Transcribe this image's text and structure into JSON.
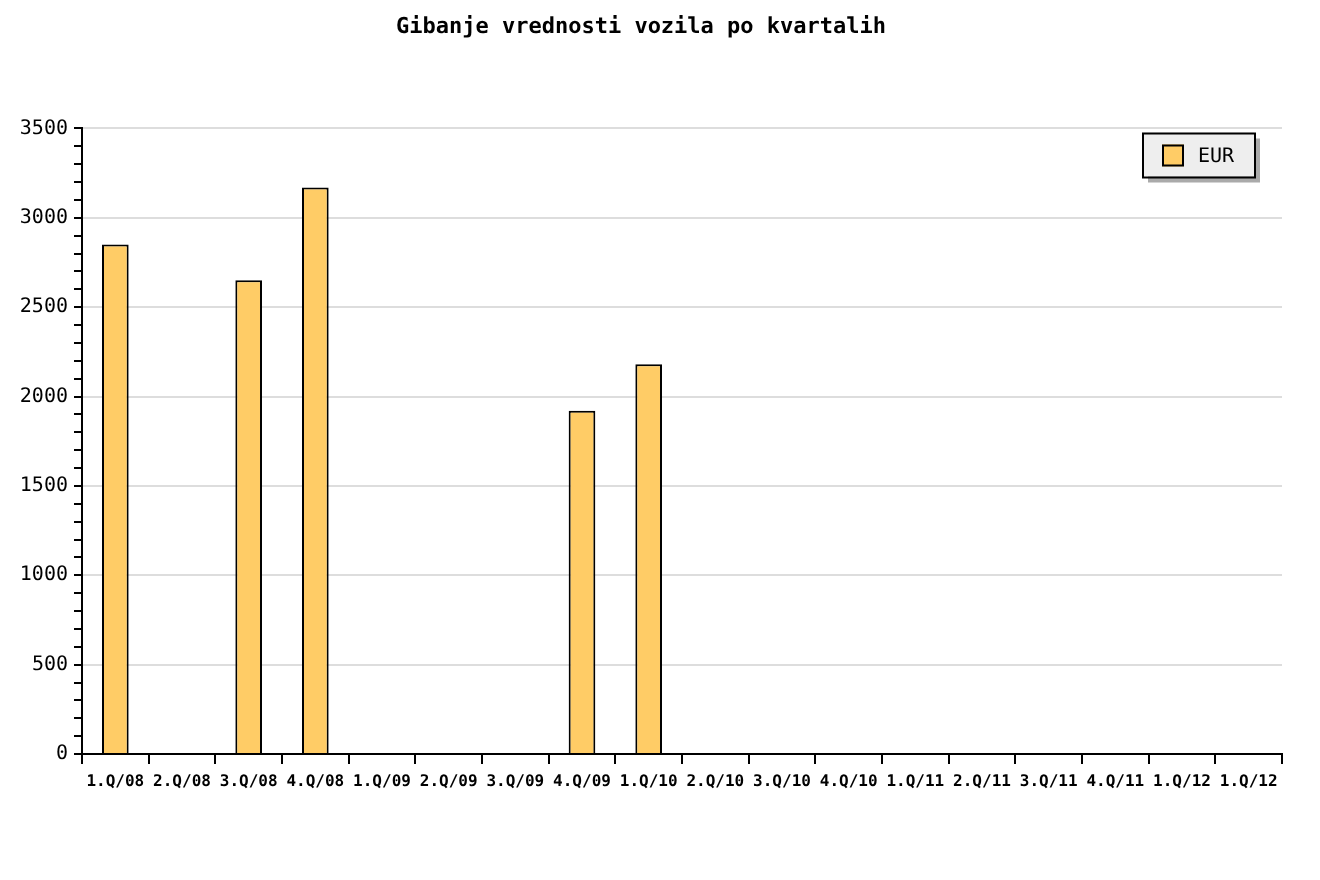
{
  "chart_data": {
    "type": "bar",
    "title": "Gibanje vrednosti vozila po kvartalih",
    "categories": [
      "1.Q/08",
      "2.Q/08",
      "3.Q/08",
      "4.Q/08",
      "1.Q/09",
      "2.Q/09",
      "3.Q/09",
      "4.Q/09",
      "1.Q/10",
      "2.Q/10",
      "3.Q/10",
      "4.Q/10",
      "1.Q/11",
      "2.Q/11",
      "3.Q/11",
      "4.Q/11",
      "1.Q/12",
      "1.Q/12"
    ],
    "series": [
      {
        "name": "EUR",
        "color": "#ffcc66",
        "values": [
          2850,
          null,
          2650,
          3170,
          null,
          null,
          null,
          1920,
          2180,
          null,
          null,
          null,
          null,
          null,
          null,
          null,
          null,
          null
        ]
      }
    ],
    "ylim": [
      0,
      3500
    ],
    "yticks": [
      0,
      {
        "value": 100,
        "label": null
      },
      {
        "value": 200,
        "label": null
      },
      {
        "value": 300,
        "label": null
      },
      {
        "value": 400,
        "label": null
      },
      500,
      {
        "value": 600,
        "label": null
      },
      {
        "value": 700,
        "label": null
      },
      {
        "value": 800,
        "label": null
      },
      {
        "value": 900,
        "label": null
      },
      1000,
      {
        "value": 1100,
        "label": null
      },
      {
        "value": 1200,
        "label": null
      },
      {
        "value": 1300,
        "label": null
      },
      {
        "value": 1400,
        "label": null
      },
      1500,
      {
        "value": 1600,
        "label": null
      },
      {
        "value": 1700,
        "label": null
      },
      {
        "value": 1800,
        "label": null
      },
      {
        "value": 1900,
        "label": null
      },
      2000,
      {
        "value": 2100,
        "label": null
      },
      {
        "value": 2200,
        "label": null
      },
      {
        "value": 2300,
        "label": null
      },
      {
        "value": 2400,
        "label": null
      },
      2500,
      {
        "value": 2600,
        "label": null
      },
      {
        "value": 2700,
        "label": null
      },
      {
        "value": 2800,
        "label": null
      },
      {
        "value": 2900,
        "label": null
      },
      3000,
      {
        "value": 3100,
        "label": null
      },
      {
        "value": 3200,
        "label": null
      },
      {
        "value": 3300,
        "label": null
      },
      {
        "value": 3400,
        "label": null
      },
      3500
    ],
    "grid": "y",
    "legend": "top right"
  }
}
